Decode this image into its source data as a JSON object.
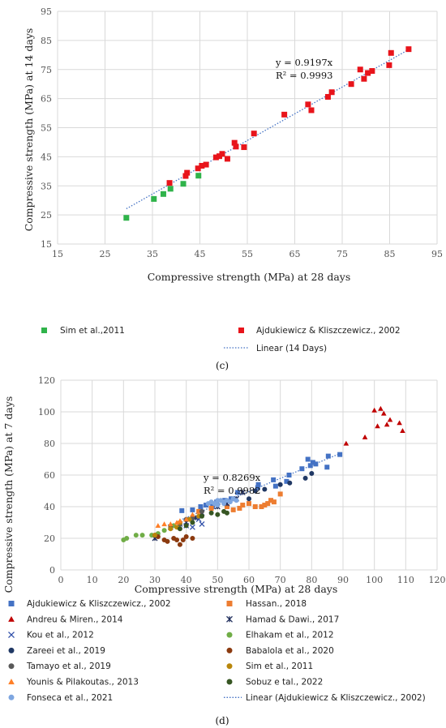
{
  "chart_data": [
    {
      "type": "scatter",
      "panel_label": "(c)",
      "xlabel": "Compressive strength (MPa) at 28 days",
      "ylabel": "Compressive strength (MPa) at 14 days",
      "xlim": [
        15,
        95
      ],
      "ylim": [
        15,
        95
      ],
      "xticks": [
        15,
        25,
        35,
        45,
        55,
        65,
        75,
        85,
        95
      ],
      "yticks": [
        15,
        25,
        35,
        45,
        55,
        65,
        75,
        85,
        95
      ],
      "grid": true,
      "equation": "y = 0.9197x",
      "r_squared": "R² = 0.9993",
      "trendline": {
        "label": "Linear (14 Days)",
        "slope": 0.9197,
        "x_range": [
          29.5,
          89
        ]
      },
      "series": [
        {
          "name": "Sim et al.,2011",
          "marker": "square",
          "color": "#2fb34a",
          "points": [
            [
              29.5,
              24
            ],
            [
              35.3,
              30.5
            ],
            [
              37.3,
              32.2
            ],
            [
              38.8,
              34
            ],
            [
              41.5,
              35.7
            ],
            [
              44.7,
              38.5
            ]
          ]
        },
        {
          "name": "Ajdukiewicz & Kliszczewicz., 2002",
          "marker": "square",
          "color": "#e8141b",
          "points": [
            [
              38.6,
              36
            ],
            [
              42,
              38.4
            ],
            [
              42.3,
              39.5
            ],
            [
              44.6,
              41
            ],
            [
              45.4,
              41.9
            ],
            [
              46.3,
              42.3
            ],
            [
              48.4,
              44.8
            ],
            [
              49.1,
              45.2
            ],
            [
              49.7,
              46
            ],
            [
              50.8,
              44.3
            ],
            [
              52.3,
              49.8
            ],
            [
              52.6,
              48.5
            ],
            [
              54.3,
              48.3
            ],
            [
              56.4,
              53
            ],
            [
              62.8,
              59.5
            ],
            [
              67.8,
              63
            ],
            [
              68.5,
              61
            ],
            [
              72,
              65.6
            ],
            [
              72.8,
              67.2
            ],
            [
              76.9,
              70
            ],
            [
              78.8,
              75
            ],
            [
              79.6,
              71.8
            ],
            [
              80.4,
              73.8
            ],
            [
              81.3,
              74.5
            ],
            [
              84.9,
              76.5
            ],
            [
              85.3,
              80.7
            ],
            [
              89,
              82
            ]
          ]
        }
      ]
    },
    {
      "type": "scatter",
      "panel_label": "(d)",
      "xlabel": "Compressive strength (MPa) at 28 days",
      "ylabel": "Compressive strength (MPa) at 7 days",
      "xlim": [
        0,
        120
      ],
      "ylim": [
        0,
        120
      ],
      "xticks": [
        0,
        10,
        20,
        30,
        40,
        50,
        60,
        70,
        80,
        90,
        100,
        110,
        120
      ],
      "yticks": [
        0,
        20,
        40,
        60,
        80,
        100,
        120
      ],
      "grid": true,
      "equation": "y = 0.8269x",
      "r_squared": "R² = 0.9982",
      "trendline": {
        "label": "Linear (Ajdukiewicz & Kliszczewicz., 2002)",
        "slope": 0.8269,
        "x_range": [
          38,
          89
        ]
      },
      "series": [
        {
          "name": "Ajdukiewicz & Kliszczewicz., 2002",
          "marker": "square",
          "color": "#4472c4",
          "points": [
            [
              38.6,
              37.5
            ],
            [
              42,
              38
            ],
            [
              44.6,
              40
            ],
            [
              46.3,
              41
            ],
            [
              48.4,
              40
            ],
            [
              49.7,
              43
            ],
            [
              52.3,
              44
            ],
            [
              54.3,
              45
            ],
            [
              56.4,
              49
            ],
            [
              62.8,
              52
            ],
            [
              63,
              54
            ],
            [
              67.8,
              57
            ],
            [
              68.5,
              53
            ],
            [
              72,
              56
            ],
            [
              72.8,
              60
            ],
            [
              76.9,
              64
            ],
            [
              78.8,
              70
            ],
            [
              79.6,
              66
            ],
            [
              80.4,
              68
            ],
            [
              81.3,
              67
            ],
            [
              84.9,
              65
            ],
            [
              85.3,
              72
            ],
            [
              89,
              73
            ]
          ]
        },
        {
          "name": "Hassan., 2018",
          "marker": "square",
          "color": "#ed7d31",
          "points": [
            [
              44,
              37
            ],
            [
              48,
              39
            ],
            [
              53,
              40
            ],
            [
              55,
              38
            ],
            [
              57,
              39
            ],
            [
              58,
              41
            ],
            [
              60,
              42
            ],
            [
              62,
              40
            ],
            [
              64,
              40
            ],
            [
              65,
              41
            ],
            [
              66,
              42
            ],
            [
              67,
              44
            ],
            [
              68,
              43
            ],
            [
              70,
              48
            ]
          ]
        },
        {
          "name": "Andreu & Miren., 2014",
          "marker": "triangle",
          "color": "#c00000",
          "points": [
            [
              91,
              80
            ],
            [
              97,
              84
            ],
            [
              100,
              101
            ],
            [
              101,
              91
            ],
            [
              102,
              102
            ],
            [
              103,
              99
            ],
            [
              104,
              92
            ],
            [
              105,
              95
            ],
            [
              108,
              93
            ],
            [
              109,
              88
            ]
          ]
        },
        {
          "name": "Hamad & Dawi., 2017",
          "marker": "xstar",
          "color": "#1f2d5c",
          "points": [
            [
              30,
              20
            ],
            [
              35,
              27
            ],
            [
              40,
              30
            ],
            [
              43,
              33
            ],
            [
              45,
              36
            ],
            [
              50,
              40
            ],
            [
              53,
              42
            ],
            [
              56,
              45
            ],
            [
              58,
              49
            ]
          ]
        },
        {
          "name": "Kou et al., 2012",
          "marker": "x",
          "color": "#2f4ea8",
          "points": [
            [
              38,
              29
            ],
            [
              40,
              28
            ],
            [
              42,
              27
            ],
            [
              44,
              32
            ],
            [
              45,
              29
            ]
          ]
        },
        {
          "name": "Elhakam et al., 2012",
          "marker": "circle",
          "color": "#70ad47",
          "points": [
            [
              20,
              19
            ],
            [
              21,
              20
            ],
            [
              24,
              22
            ],
            [
              26,
              22
            ],
            [
              29,
              22
            ],
            [
              31,
              23
            ],
            [
              33,
              25
            ],
            [
              36,
              28
            ]
          ]
        },
        {
          "name": "Zareei et al., 2019",
          "marker": "circle",
          "color": "#203864",
          "points": [
            [
              60,
              45
            ],
            [
              62,
              50
            ],
            [
              65,
              51
            ],
            [
              70,
              54
            ],
            [
              73,
              55
            ],
            [
              78,
              58
            ],
            [
              80,
              61
            ]
          ]
        },
        {
          "name": "Babalola et al., 2020",
          "marker": "circle",
          "color": "#8b3a0f",
          "points": [
            [
              30,
              22
            ],
            [
              31,
              21
            ],
            [
              33,
              19
            ],
            [
              34,
              18
            ],
            [
              36,
              20
            ],
            [
              37,
              19
            ],
            [
              38,
              16
            ],
            [
              39,
              19
            ],
            [
              40,
              21
            ],
            [
              42,
              20
            ]
          ]
        },
        {
          "name": "Tamayo et al., 2019",
          "marker": "circle",
          "color": "#595959",
          "points": [
            [
              35,
              27
            ],
            [
              38,
              29
            ],
            [
              40,
              32
            ],
            [
              42,
              33
            ],
            [
              45,
              37
            ]
          ]
        },
        {
          "name": "Sim et al., 2011",
          "marker": "circle",
          "color": "#b8860b",
          "points": [
            [
              30,
              22
            ],
            [
              35,
              26
            ],
            [
              37,
              27
            ],
            [
              38,
              30
            ],
            [
              41,
              32
            ],
            [
              44,
              34
            ]
          ]
        },
        {
          "name": "Younis & Pilakoutas., 2013",
          "marker": "triangle",
          "color": "#ff7f27",
          "points": [
            [
              31,
              28
            ],
            [
              33,
              29
            ],
            [
              35,
              29
            ],
            [
              37,
              30
            ],
            [
              38,
              31
            ],
            [
              40,
              32
            ],
            [
              42,
              35
            ]
          ]
        },
        {
          "name": "Sobuz e tal., 2022",
          "marker": "circle",
          "color": "#375623",
          "points": [
            [
              38,
              26
            ],
            [
              40,
              28
            ],
            [
              42,
              30
            ],
            [
              45,
              34
            ],
            [
              48,
              36
            ],
            [
              50,
              35
            ],
            [
              52,
              37
            ],
            [
              53,
              36
            ]
          ]
        },
        {
          "name": "Fonseca et al., 2021",
          "marker": "circle",
          "color": "#7ea6e0",
          "points": [
            [
              47,
              42
            ],
            [
              48,
              43
            ],
            [
              49,
              42
            ],
            [
              50,
              44
            ],
            [
              51,
              44
            ],
            [
              52,
              43
            ],
            [
              53,
              44
            ],
            [
              54,
              43
            ],
            [
              55,
              45
            ],
            [
              56,
              44
            ],
            [
              50,
              41
            ],
            [
              52,
              42
            ]
          ]
        }
      ]
    }
  ]
}
